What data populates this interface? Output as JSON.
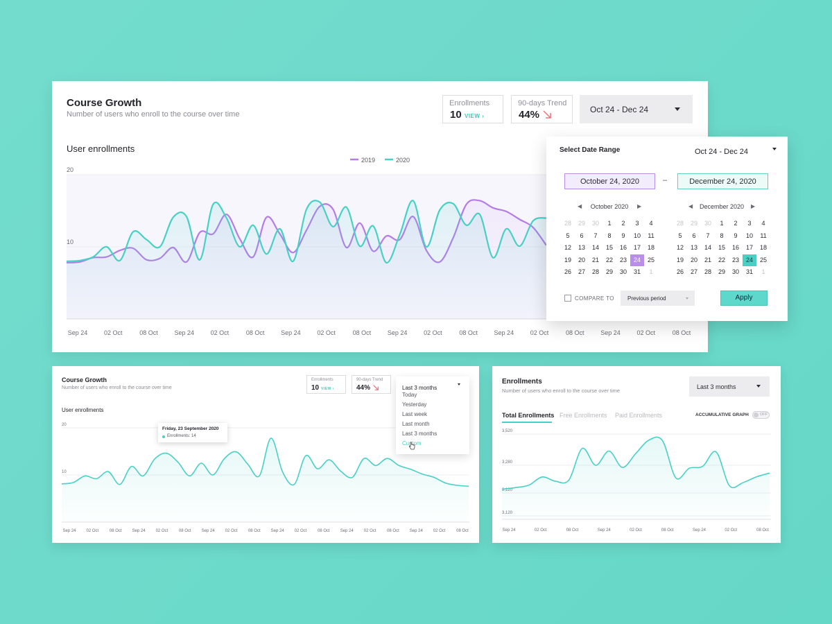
{
  "colors": {
    "c2019": "#b47de6",
    "c2020": "#48d0c4",
    "accent": "#48d0c4",
    "background": "#6ed9ca"
  },
  "main": {
    "title": "Course Growth",
    "subtitle": "Number of users who enroll to the course over time",
    "enrollments": {
      "label": "Enrollments",
      "value": "10",
      "link": "VIEW ›"
    },
    "trend": {
      "label": "90-days Trend",
      "value": "44%",
      "icon": "trend-down-arrow-icon"
    },
    "date_range": "Oct 24 - Dec 24",
    "chart_title": "User enrollments"
  },
  "picker": {
    "title": "Select Date Range",
    "range_value": "Oct 24 - Dec 24",
    "start_date": "October 24, 2020",
    "end_date": "December 24, 2020",
    "separator": "–",
    "oct_title": "October 2020",
    "dec_title": "December 2020",
    "prev_glyph": "◀",
    "next_glyph": "▶",
    "compare_label": "COMPARE TO",
    "period_select": "Previous period",
    "apply": "Apply"
  },
  "bottom_left": {
    "title": "Course Growth",
    "subtitle": "Number of users who enroll to the course over time",
    "enrollments": {
      "label": "Enrollments",
      "value": "10",
      "link": "VIEW ›"
    },
    "trend": {
      "label": "90-days Trend",
      "value": "44%"
    },
    "chart_title": "User enrollments",
    "dropdown": "Last 3 months",
    "menu_items": [
      "Today",
      "Yesterday",
      "Last week",
      "Last month",
      "Last 3 months",
      "Custom"
    ],
    "tooltip": {
      "date": "Friday, 23 September 2020",
      "text": "Enrollments: 14"
    }
  },
  "bottom_right": {
    "title": "Enrollments",
    "subtitle": "Number of users who enroll to the course over time",
    "dropdown": "Last 3 months",
    "tabs": [
      "Total Enrollments",
      "Free Enrollments",
      "Paid Enrollments"
    ],
    "toggle_label": "ACCUMULATIVE GRAPH",
    "toggle_state": "OFF"
  },
  "chart_data": [
    {
      "type": "line",
      "title": "User enrollments",
      "legend": [
        "2019",
        "2020"
      ],
      "ylim": [
        0,
        20
      ],
      "ticks_y": [
        "20",
        "10"
      ],
      "x_ticks": [
        "Sep 24",
        "02 Oct",
        "08 Oct",
        "Sep 24",
        "02 Oct",
        "08 Oct",
        "Sep 24",
        "02 Oct",
        "08 Oct",
        "Sep 24",
        "02 Oct",
        "08 Oct",
        "Sep 24",
        "02 Oct",
        "08 Oct",
        "Sep 24",
        "02 Oct",
        "08 Oct"
      ],
      "series": [
        {
          "name": "2019",
          "values": [
            7.8,
            7.9,
            8.5,
            8.6,
            9.5,
            9.8,
            8.2,
            8.4,
            9.9,
            7.9,
            12.0,
            11.8,
            14.5,
            11.1,
            8.6,
            14.1,
            11.8,
            9.2,
            12.3,
            15.6,
            15.2,
            9.9,
            13.3,
            9.4,
            11.5,
            11.0,
            14.2,
            9.5,
            7.9,
            11.2,
            15.9,
            16.4,
            15.4,
            14.9,
            13.8,
            12.7,
            10.2
          ]
        },
        {
          "name": "2020",
          "values": [
            8.0,
            8.1,
            8.6,
            10.0,
            8.1,
            12.1,
            11.0,
            10.0,
            14.1,
            14.2,
            8.2,
            15.9,
            14.0,
            10.0,
            13.0,
            9.0,
            12.5,
            8.0,
            15.2,
            16.2,
            12.8,
            15.5,
            10.1,
            12.9,
            7.8,
            11.7,
            16.4,
            10.0,
            15.1,
            16.0,
            13.0,
            14.5,
            8.5,
            12.5,
            10.1,
            13.6,
            14.0
          ]
        }
      ],
      "ghost_series": [
        {
          "name": "2019",
          "values": [
            10.0,
            9.8,
            11.0,
            12.5,
            13.5,
            10.5,
            9.8,
            12.8,
            10.2,
            10.0,
            9.8
          ]
        },
        {
          "name": "2020",
          "values": [
            10.5,
            12.8,
            11.5,
            15.8,
            14.5,
            12.2,
            13.1,
            10.2,
            11.8,
            12.5,
            9.2
          ]
        }
      ]
    },
    {
      "type": "line",
      "title": "User enrollments",
      "ylim": [
        0,
        20
      ],
      "ticks_y": [
        "20",
        "10"
      ],
      "x_ticks": [
        "Sep 24",
        "02 Oct",
        "08 Oct",
        "Sep 24",
        "02 Oct",
        "08 Oct",
        "Sep 24",
        "02 Oct",
        "08 Oct",
        "Sep 24",
        "02 Oct",
        "08 Oct",
        "Sep 24",
        "02 Oct",
        "08 Oct",
        "Sep 24",
        "02 Oct",
        "08 Oct"
      ],
      "series": [
        {
          "name": "2020",
          "values": [
            8.1,
            8.4,
            9.8,
            9.2,
            10.7,
            8.0,
            11.8,
            9.8,
            13.4,
            14.6,
            12.7,
            9.8,
            12.5,
            10.0,
            13.5,
            14.9,
            12.3,
            9.8,
            17.8,
            10.6,
            8.0,
            14.1,
            11.3,
            13.2,
            10.8,
            9.5,
            13.5,
            12.0,
            13.5,
            12.0,
            11.2,
            10.2,
            9.5,
            8.3,
            7.8,
            7.6
          ]
        }
      ]
    },
    {
      "type": "line",
      "title": "Total Enrollments",
      "ticks_y": [
        "3,520",
        "3,280",
        "3,120",
        "3,120"
      ],
      "x_ticks": [
        "Sep 24",
        "02 Oct",
        "08 Oct",
        "Sep 24",
        "02 Oct",
        "08 Oct",
        "Sep 24",
        "02 Oct",
        "08 Oct"
      ],
      "series": [
        {
          "name": "Total Enrollments",
          "values": [
            3250,
            3258,
            3270,
            3310,
            3289,
            3295,
            3450,
            3367,
            3437,
            3357,
            3425,
            3491,
            3487,
            3305,
            3353,
            3362,
            3433,
            3267,
            3282,
            3310,
            3329
          ]
        }
      ]
    }
  ]
}
